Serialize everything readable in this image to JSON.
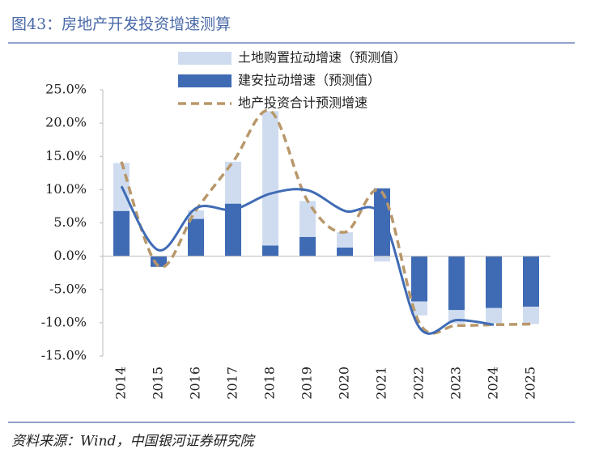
{
  "chart_data": {
    "type": "bar",
    "title": "图43：房地产开发投资增速测算",
    "source": "资料来源：Wind，中国银河证券研究院",
    "categories": [
      "2014",
      "2015",
      "2016",
      "2017",
      "2018",
      "2019",
      "2020",
      "2021",
      "2022",
      "2023",
      "2024",
      "2025"
    ],
    "series": [
      {
        "name": "土地购置拉动增速（预测值）",
        "type": "bar",
        "color": "#cfdcf0",
        "values": [
          7.2,
          0,
          1.3,
          6.3,
          20.2,
          5.4,
          2.3,
          -0.8,
          -2.1,
          -2.0,
          -2.3,
          -2.6
        ]
      },
      {
        "name": "建安拉动增速（预测值）",
        "type": "bar",
        "color": "#3f6bb5",
        "values": [
          6.8,
          -1.6,
          5.6,
          7.9,
          1.6,
          2.9,
          1.3,
          10.2,
          -6.8,
          -8.1,
          -7.8,
          -7.6
        ]
      },
      {
        "name": "地产投资合计预测增速",
        "type": "line",
        "dashed": true,
        "color": "#b8976a",
        "values": [
          14.2,
          -1.5,
          6.9,
          14.2,
          21.8,
          8.3,
          3.6,
          9.6,
          -10.0,
          -10.4,
          -10.3,
          -10.2
        ]
      },
      {
        "type": "line",
        "color": "#3f6bb5",
        "values": [
          10.5,
          0.9,
          7.2,
          7.0,
          9.4,
          9.9,
          6.8,
          6.0,
          -10.7,
          -9.6,
          -10.3,
          null
        ]
      }
    ],
    "ylim": [
      -15,
      25
    ],
    "yticks": [
      {
        "value": -15,
        "label": "-15.0%"
      },
      {
        "value": -10,
        "label": "-10.0%"
      },
      {
        "value": -5,
        "label": "-5.0%"
      },
      {
        "value": 0,
        "label": "0.0%"
      },
      {
        "value": 5,
        "label": "5.0%"
      },
      {
        "value": 10,
        "label": "10.0%"
      },
      {
        "value": 15,
        "label": "15.0%"
      },
      {
        "value": 20,
        "label": "20.0%"
      },
      {
        "value": 25,
        "label": "25.0%"
      }
    ],
    "grid": false,
    "legend": "top"
  }
}
